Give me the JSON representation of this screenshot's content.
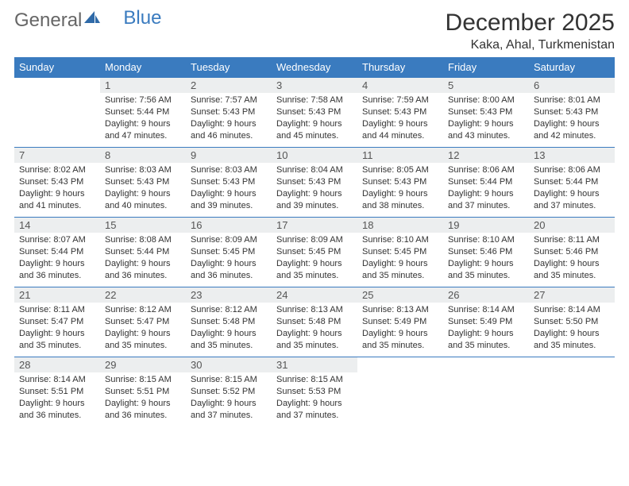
{
  "brand": {
    "part1": "General",
    "part2": "Blue"
  },
  "title": {
    "month": "December 2025",
    "location": "Kaka, Ahal, Turkmenistan"
  },
  "colors": {
    "header_bg": "#3a7bbf",
    "header_fg": "#ffffff",
    "daynum_bg": "#eceeef",
    "row_border": "#3a7bbf",
    "text": "#333333"
  },
  "daysOfWeek": [
    "Sunday",
    "Monday",
    "Tuesday",
    "Wednesday",
    "Thursday",
    "Friday",
    "Saturday"
  ],
  "grid": [
    [
      null,
      {
        "n": "1",
        "l1": "Sunrise: 7:56 AM",
        "l2": "Sunset: 5:44 PM",
        "l3": "Daylight: 9 hours",
        "l4": "and 47 minutes."
      },
      {
        "n": "2",
        "l1": "Sunrise: 7:57 AM",
        "l2": "Sunset: 5:43 PM",
        "l3": "Daylight: 9 hours",
        "l4": "and 46 minutes."
      },
      {
        "n": "3",
        "l1": "Sunrise: 7:58 AM",
        "l2": "Sunset: 5:43 PM",
        "l3": "Daylight: 9 hours",
        "l4": "and 45 minutes."
      },
      {
        "n": "4",
        "l1": "Sunrise: 7:59 AM",
        "l2": "Sunset: 5:43 PM",
        "l3": "Daylight: 9 hours",
        "l4": "and 44 minutes."
      },
      {
        "n": "5",
        "l1": "Sunrise: 8:00 AM",
        "l2": "Sunset: 5:43 PM",
        "l3": "Daylight: 9 hours",
        "l4": "and 43 minutes."
      },
      {
        "n": "6",
        "l1": "Sunrise: 8:01 AM",
        "l2": "Sunset: 5:43 PM",
        "l3": "Daylight: 9 hours",
        "l4": "and 42 minutes."
      }
    ],
    [
      {
        "n": "7",
        "l1": "Sunrise: 8:02 AM",
        "l2": "Sunset: 5:43 PM",
        "l3": "Daylight: 9 hours",
        "l4": "and 41 minutes."
      },
      {
        "n": "8",
        "l1": "Sunrise: 8:03 AM",
        "l2": "Sunset: 5:43 PM",
        "l3": "Daylight: 9 hours",
        "l4": "and 40 minutes."
      },
      {
        "n": "9",
        "l1": "Sunrise: 8:03 AM",
        "l2": "Sunset: 5:43 PM",
        "l3": "Daylight: 9 hours",
        "l4": "and 39 minutes."
      },
      {
        "n": "10",
        "l1": "Sunrise: 8:04 AM",
        "l2": "Sunset: 5:43 PM",
        "l3": "Daylight: 9 hours",
        "l4": "and 39 minutes."
      },
      {
        "n": "11",
        "l1": "Sunrise: 8:05 AM",
        "l2": "Sunset: 5:43 PM",
        "l3": "Daylight: 9 hours",
        "l4": "and 38 minutes."
      },
      {
        "n": "12",
        "l1": "Sunrise: 8:06 AM",
        "l2": "Sunset: 5:44 PM",
        "l3": "Daylight: 9 hours",
        "l4": "and 37 minutes."
      },
      {
        "n": "13",
        "l1": "Sunrise: 8:06 AM",
        "l2": "Sunset: 5:44 PM",
        "l3": "Daylight: 9 hours",
        "l4": "and 37 minutes."
      }
    ],
    [
      {
        "n": "14",
        "l1": "Sunrise: 8:07 AM",
        "l2": "Sunset: 5:44 PM",
        "l3": "Daylight: 9 hours",
        "l4": "and 36 minutes."
      },
      {
        "n": "15",
        "l1": "Sunrise: 8:08 AM",
        "l2": "Sunset: 5:44 PM",
        "l3": "Daylight: 9 hours",
        "l4": "and 36 minutes."
      },
      {
        "n": "16",
        "l1": "Sunrise: 8:09 AM",
        "l2": "Sunset: 5:45 PM",
        "l3": "Daylight: 9 hours",
        "l4": "and 36 minutes."
      },
      {
        "n": "17",
        "l1": "Sunrise: 8:09 AM",
        "l2": "Sunset: 5:45 PM",
        "l3": "Daylight: 9 hours",
        "l4": "and 35 minutes."
      },
      {
        "n": "18",
        "l1": "Sunrise: 8:10 AM",
        "l2": "Sunset: 5:45 PM",
        "l3": "Daylight: 9 hours",
        "l4": "and 35 minutes."
      },
      {
        "n": "19",
        "l1": "Sunrise: 8:10 AM",
        "l2": "Sunset: 5:46 PM",
        "l3": "Daylight: 9 hours",
        "l4": "and 35 minutes."
      },
      {
        "n": "20",
        "l1": "Sunrise: 8:11 AM",
        "l2": "Sunset: 5:46 PM",
        "l3": "Daylight: 9 hours",
        "l4": "and 35 minutes."
      }
    ],
    [
      {
        "n": "21",
        "l1": "Sunrise: 8:11 AM",
        "l2": "Sunset: 5:47 PM",
        "l3": "Daylight: 9 hours",
        "l4": "and 35 minutes."
      },
      {
        "n": "22",
        "l1": "Sunrise: 8:12 AM",
        "l2": "Sunset: 5:47 PM",
        "l3": "Daylight: 9 hours",
        "l4": "and 35 minutes."
      },
      {
        "n": "23",
        "l1": "Sunrise: 8:12 AM",
        "l2": "Sunset: 5:48 PM",
        "l3": "Daylight: 9 hours",
        "l4": "and 35 minutes."
      },
      {
        "n": "24",
        "l1": "Sunrise: 8:13 AM",
        "l2": "Sunset: 5:48 PM",
        "l3": "Daylight: 9 hours",
        "l4": "and 35 minutes."
      },
      {
        "n": "25",
        "l1": "Sunrise: 8:13 AM",
        "l2": "Sunset: 5:49 PM",
        "l3": "Daylight: 9 hours",
        "l4": "and 35 minutes."
      },
      {
        "n": "26",
        "l1": "Sunrise: 8:14 AM",
        "l2": "Sunset: 5:49 PM",
        "l3": "Daylight: 9 hours",
        "l4": "and 35 minutes."
      },
      {
        "n": "27",
        "l1": "Sunrise: 8:14 AM",
        "l2": "Sunset: 5:50 PM",
        "l3": "Daylight: 9 hours",
        "l4": "and 35 minutes."
      }
    ],
    [
      {
        "n": "28",
        "l1": "Sunrise: 8:14 AM",
        "l2": "Sunset: 5:51 PM",
        "l3": "Daylight: 9 hours",
        "l4": "and 36 minutes."
      },
      {
        "n": "29",
        "l1": "Sunrise: 8:15 AM",
        "l2": "Sunset: 5:51 PM",
        "l3": "Daylight: 9 hours",
        "l4": "and 36 minutes."
      },
      {
        "n": "30",
        "l1": "Sunrise: 8:15 AM",
        "l2": "Sunset: 5:52 PM",
        "l3": "Daylight: 9 hours",
        "l4": "and 37 minutes."
      },
      {
        "n": "31",
        "l1": "Sunrise: 8:15 AM",
        "l2": "Sunset: 5:53 PM",
        "l3": "Daylight: 9 hours",
        "l4": "and 37 minutes."
      },
      null,
      null,
      null
    ]
  ]
}
